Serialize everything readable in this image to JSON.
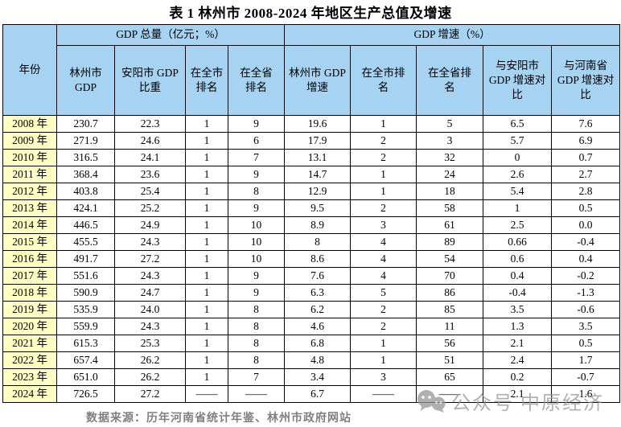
{
  "title": "表 1 林州市 2008-2024 年地区生产总值及增速",
  "table": {
    "year_header": "年份",
    "group_headers": [
      {
        "label": "GDP 总量（亿元；%）",
        "colspan": 4
      },
      {
        "label": "GDP 增速（%）",
        "colspan": 5
      }
    ],
    "columns": [
      "林州市\nGDP",
      "安阳市 GDP\n比重",
      "在全市\n排名",
      "在全省\n排名",
      "林州市 GDP\n增速",
      "在全市排\n名",
      "在全省排\n名",
      "与安阳市\nGDP 增速对\n比",
      "与河南省\nGDP 增速对\n比"
    ],
    "rows": [
      {
        "year": "2008 年",
        "values": [
          "230.7",
          "22.3",
          "1",
          "9",
          "19.6",
          "1",
          "5",
          "6.5",
          "7.6"
        ]
      },
      {
        "year": "2009 年",
        "values": [
          "271.9",
          "24.6",
          "1",
          "6",
          "17.9",
          "2",
          "3",
          "5.7",
          "6.9"
        ]
      },
      {
        "year": "2010 年",
        "values": [
          "316.5",
          "24.1",
          "1",
          "7",
          "13.1",
          "2",
          "32",
          "0",
          "0.7"
        ]
      },
      {
        "year": "2011 年",
        "values": [
          "368.4",
          "23.6",
          "1",
          "9",
          "14.7",
          "1",
          "24",
          "2.6",
          "2.7"
        ]
      },
      {
        "year": "2012 年",
        "values": [
          "403.8",
          "25.4",
          "1",
          "8",
          "12.9",
          "1",
          "18",
          "5.4",
          "2.8"
        ]
      },
      {
        "year": "2013 年",
        "values": [
          "424.1",
          "25.2",
          "1",
          "9",
          "9.5",
          "2",
          "58",
          "1",
          "0.5"
        ]
      },
      {
        "year": "2014 年",
        "values": [
          "446.5",
          "24.9",
          "1",
          "10",
          "8.9",
          "3",
          "61",
          "2.5",
          "0.0"
        ]
      },
      {
        "year": "2015 年",
        "values": [
          "455.5",
          "24.3",
          "1",
          "10",
          "8",
          "4",
          "89",
          "0.66",
          "-0.4"
        ]
      },
      {
        "year": "2016 年",
        "values": [
          "491.7",
          "27.2",
          "1",
          "10",
          "8.6",
          "4",
          "54",
          "0.6",
          "0.4"
        ]
      },
      {
        "year": "2017 年",
        "values": [
          "551.6",
          "24.3",
          "1",
          "9",
          "7.6",
          "4",
          "70",
          "0.4",
          "-0.2"
        ]
      },
      {
        "year": "2018 年",
        "values": [
          "590.9",
          "24.7",
          "1",
          "9",
          "6.3",
          "5",
          "86",
          "-0.4",
          "-1.3"
        ]
      },
      {
        "year": "2019 年",
        "values": [
          "535.9",
          "24.0",
          "1",
          "8",
          "6.2",
          "2",
          "85",
          "3.5",
          "-0.6"
        ]
      },
      {
        "year": "2020 年",
        "values": [
          "559.9",
          "24.3",
          "1",
          "8",
          "4.6",
          "2",
          "11",
          "1.3",
          "3.5"
        ]
      },
      {
        "year": "2021 年",
        "values": [
          "615.3",
          "25.3",
          "1",
          "8",
          "6.8",
          "1",
          "56",
          "2.1",
          "0.5"
        ]
      },
      {
        "year": "2022 年",
        "values": [
          "657.4",
          "26.2",
          "1",
          "8",
          "4.8",
          "1",
          "51",
          "2.4",
          "1.7"
        ]
      },
      {
        "year": "2023 年",
        "values": [
          "651.0",
          "26.2",
          "1",
          "7",
          "3.4",
          "3",
          "65",
          "0.2",
          "-0.7"
        ]
      },
      {
        "year": "2024 年",
        "values": [
          "726.5",
          "27.2",
          "——",
          "——",
          "6.7",
          "——",
          "——",
          "2.1",
          "1.6"
        ]
      }
    ]
  },
  "footer": "数据来源：历年河南省统计年鉴、林州市政府网站",
  "watermark": {
    "icon": "wechat-icon",
    "text": "公众号 中原经济"
  },
  "colors": {
    "header_bg": "#A6D3F2",
    "year_bg": "#FFFFC4",
    "border": "#000000",
    "footer_text": "#808080",
    "watermark": "rgba(150,150,150,0.75)"
  }
}
